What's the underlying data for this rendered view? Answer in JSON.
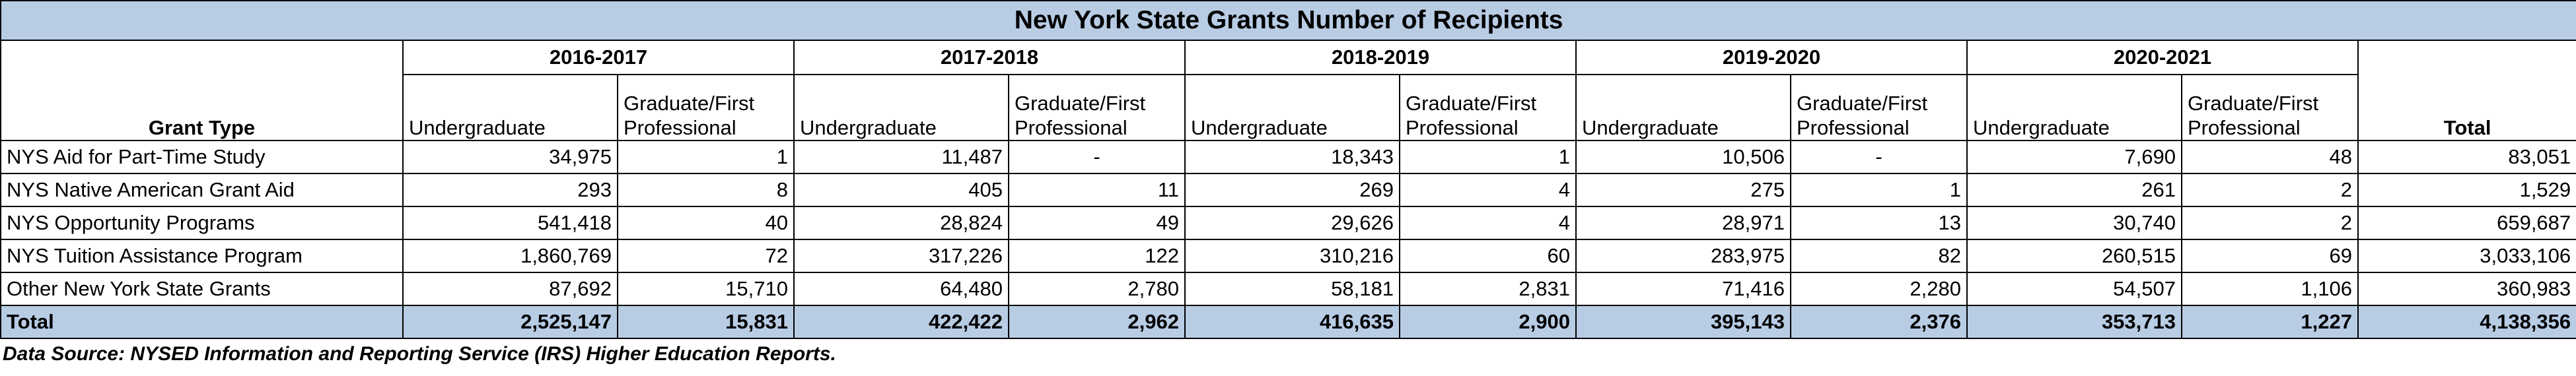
{
  "title": "New York State Grants Number of Recipients",
  "years": [
    "2016-2017",
    "2017-2018",
    "2018-2019",
    "2019-2020",
    "2020-2021"
  ],
  "header": [
    "Grant Type",
    "Undergraduate",
    "Graduate/First Professional",
    "Undergraduate",
    "Graduate/First Professional",
    "Undergraduate",
    "Graduate/First Professional",
    "Undergraduate",
    "Graduate/First Professional",
    "Undergraduate",
    "Graduate/First Professional",
    "Total"
  ],
  "rows": [
    [
      "NYS Aid for Part-Time Study",
      "34,975",
      "1",
      "11,487",
      "-",
      "18,343",
      "1",
      "10,506",
      "-",
      "7,690",
      "48",
      "83,051"
    ],
    [
      "NYS Native American Grant Aid",
      "293",
      "8",
      "405",
      "11",
      "269",
      "4",
      "275",
      "1",
      "261",
      "2",
      "1,529"
    ],
    [
      "NYS Opportunity Programs",
      "541,418",
      "40",
      "28,824",
      "49",
      "29,626",
      "4",
      "28,971",
      "13",
      "30,740",
      "2",
      "659,687"
    ],
    [
      "NYS Tuition Assistance Program",
      "1,860,769",
      "72",
      "317,226",
      "122",
      "310,216",
      "60",
      "283,975",
      "82",
      "260,515",
      "69",
      "3,033,106"
    ],
    [
      "Other New York State Grants",
      "87,692",
      "15,710",
      "64,480",
      "2,780",
      "58,181",
      "2,831",
      "71,416",
      "2,280",
      "54,507",
      "1,106",
      "360,983"
    ]
  ],
  "total_row": [
    "Total",
    "2,525,147",
    "15,831",
    "422,422",
    "2,962",
    "416,635",
    "2,900",
    "395,143",
    "2,376",
    "353,713",
    "1,227",
    "4,138,356"
  ],
  "footnote": "Data Source: NYSED Information and Reporting Service (IRS) Higher Education Reports."
}
